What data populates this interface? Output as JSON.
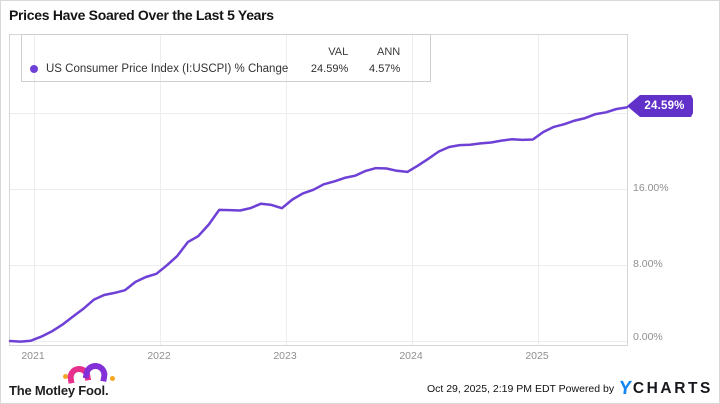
{
  "title": "Prices Have Soared Over the Last 5 Years",
  "legend": {
    "series_label": "US Consumer Price Index (I:USCPI) % Change",
    "col_val": "VAL",
    "col_ann": "ANN",
    "val": "24.59%",
    "ann": "4.57%"
  },
  "chart_data": {
    "type": "line",
    "title": "Prices Have Soared Over the Last 5 Years",
    "series_name": "US Consumer Price Index (I:USCPI) % Change",
    "end_label": "24.59%",
    "summary": {
      "VAL": "24.59%",
      "ANN": "4.57%"
    },
    "line_color": "#6e40d6",
    "tag_color": "#6030c9",
    "grid": true,
    "legend_position": "top-left",
    "x_tick_labels": [
      "2021",
      "2022",
      "2023",
      "2024",
      "2025"
    ],
    "y_tick_labels": [
      "16.00%",
      "8.00%",
      "0.00%"
    ],
    "y_gridlines_pct": [
      24,
      16,
      8,
      0
    ],
    "ylim_pct": [
      -0.4,
      32.2
    ],
    "x_range": [
      "2020-10",
      "2025-09"
    ],
    "x": [
      "2020-10",
      "2020-11",
      "2020-12",
      "2021-01",
      "2021-02",
      "2021-03",
      "2021-04",
      "2021-05",
      "2021-06",
      "2021-07",
      "2021-08",
      "2021-09",
      "2021-10",
      "2021-11",
      "2021-12",
      "2022-01",
      "2022-02",
      "2022-03",
      "2022-04",
      "2022-05",
      "2022-06",
      "2022-07",
      "2022-08",
      "2022-09",
      "2022-10",
      "2022-11",
      "2022-12",
      "2023-01",
      "2023-02",
      "2023-03",
      "2023-04",
      "2023-05",
      "2023-06",
      "2023-07",
      "2023-08",
      "2023-09",
      "2023-10",
      "2023-11",
      "2023-12",
      "2024-01",
      "2024-02",
      "2024-03",
      "2024-04",
      "2024-05",
      "2024-06",
      "2024-07",
      "2024-08",
      "2024-09",
      "2024-10",
      "2024-11",
      "2024-12",
      "2025-01",
      "2025-02",
      "2025-03",
      "2025-04",
      "2025-05",
      "2025-06",
      "2025-07",
      "2025-08",
      "2025-09"
    ],
    "values": [
      0.0,
      -0.06,
      0.03,
      0.46,
      1.01,
      1.72,
      2.56,
      3.38,
      4.34,
      4.84,
      5.06,
      5.35,
      6.22,
      6.74,
      7.07,
      7.97,
      8.96,
      10.41,
      11.03,
      12.25,
      13.8,
      13.78,
      13.74,
      13.99,
      14.45,
      14.33,
      13.98,
      14.89,
      15.54,
      15.92,
      16.5,
      16.8,
      17.17,
      17.4,
      17.91,
      18.2,
      18.16,
      17.92,
      17.8,
      18.45,
      19.18,
      19.95,
      20.42,
      20.62,
      20.66,
      20.8,
      20.9,
      21.09,
      21.23,
      21.17,
      21.21,
      22.0,
      22.54,
      22.82,
      23.2,
      23.46,
      23.88,
      24.07,
      24.42,
      24.59
    ]
  },
  "footer": {
    "brand": "The Motley Fool.",
    "timestamp_powered": "Oct 29, 2025, 2:19 PM EDT Powered by",
    "ycharts_y": "Y",
    "ycharts_rest": "CHARTS"
  }
}
